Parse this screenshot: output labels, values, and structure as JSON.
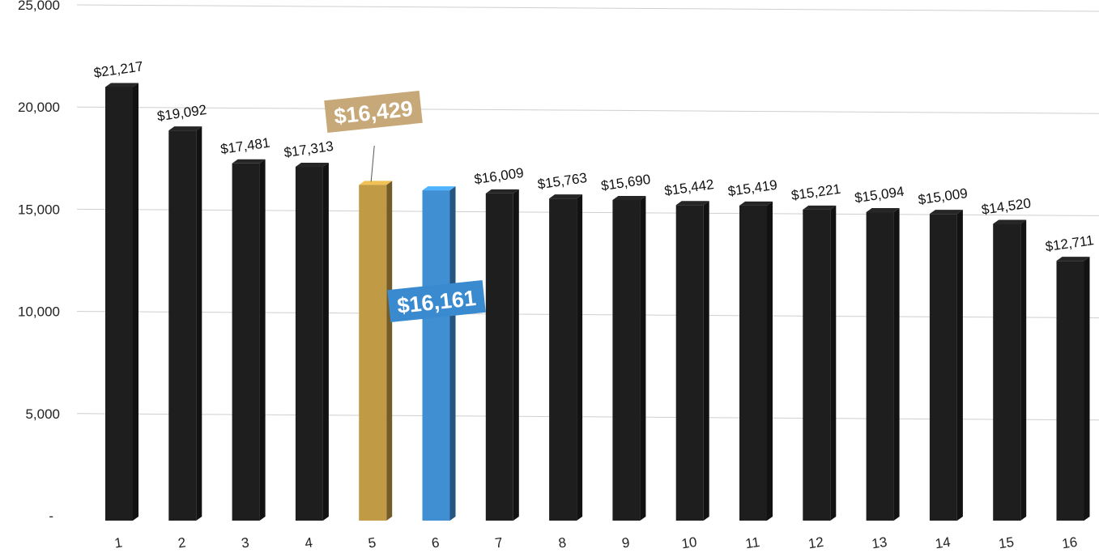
{
  "chart_data": {
    "type": "bar",
    "categories": [
      "1",
      "2",
      "3",
      "4",
      "5",
      "6",
      "7",
      "8",
      "9",
      "10",
      "11",
      "12",
      "13",
      "14",
      "15",
      "16"
    ],
    "values": [
      21217,
      19092,
      17481,
      17313,
      16429,
      16161,
      16009,
      15763,
      15690,
      15442,
      15419,
      15221,
      15094,
      15009,
      14520,
      12711
    ],
    "value_labels": [
      "$21,217",
      "$19,092",
      "$17,481",
      "$17,313",
      "",
      "",
      "$16,009",
      "$15,763",
      "$15,690",
      "$15,442",
      "$15,419",
      "$15,221",
      "$15,094",
      "$15,009",
      "$14,520",
      "$12,711"
    ],
    "y_ticks": [
      "-",
      "5,000",
      "10,000",
      "15,000",
      "20,000",
      "25,000"
    ],
    "ylim": [
      0,
      25000
    ],
    "grid": true,
    "bar_colors": [
      "#1e1e1e",
      "#1e1e1e",
      "#1e1e1e",
      "#1e1e1e",
      "#c19a45",
      "#3f8fd2",
      "#1e1e1e",
      "#1e1e1e",
      "#1e1e1e",
      "#1e1e1e",
      "#1e1e1e",
      "#1e1e1e",
      "#1e1e1e",
      "#1e1e1e",
      "#1e1e1e",
      "#1e1e1e"
    ],
    "callouts": [
      {
        "category": "5",
        "text": "$16,429",
        "color": "#c7a878"
      },
      {
        "category": "6",
        "text": "$16,161",
        "color": "#3a8ad0"
      }
    ]
  }
}
